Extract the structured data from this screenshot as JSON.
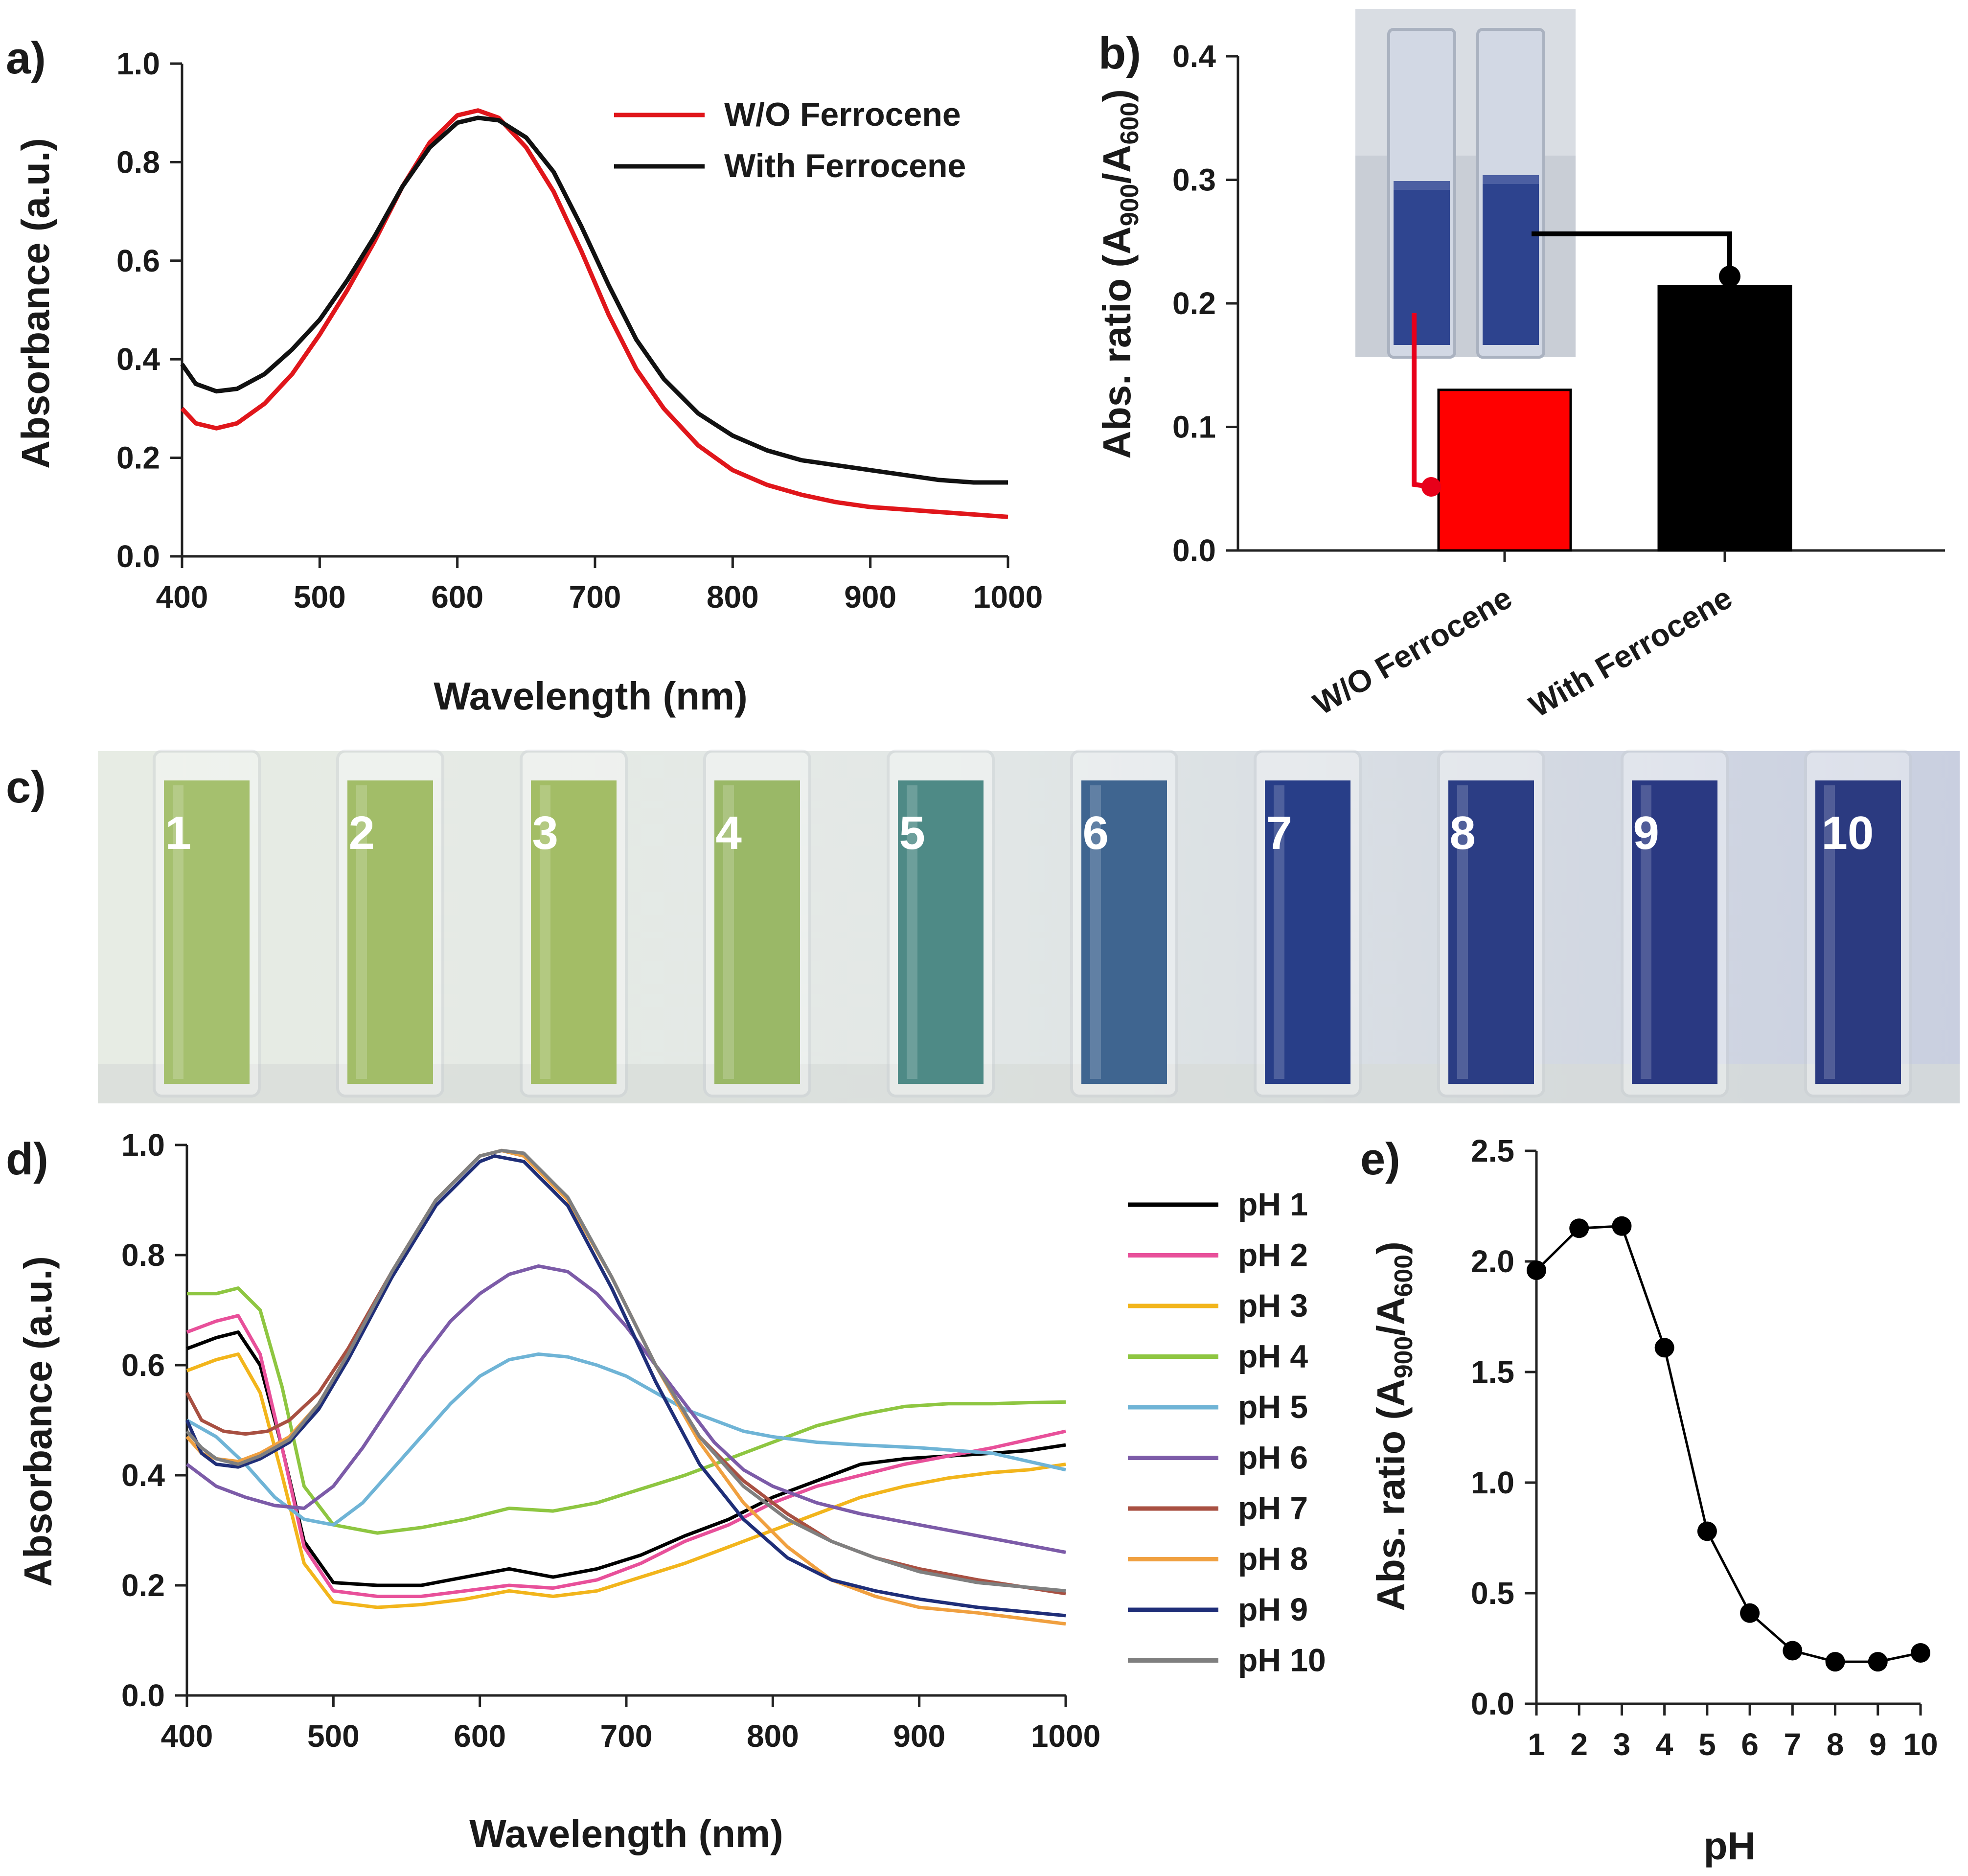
{
  "panels": {
    "a": {
      "label": "a)",
      "chart_data": {
        "type": "line",
        "xlabel": "Wavelength (nm)",
        "ylabel": "Absorbance (a.u.)",
        "xlim": [
          400,
          1000
        ],
        "ylim": [
          0,
          1.0
        ],
        "xticks": [
          400,
          500,
          600,
          700,
          800,
          900,
          1000
        ],
        "yticks": [
          0.0,
          0.2,
          0.4,
          0.6,
          0.8,
          1.0
        ],
        "legend_position": "top-right",
        "series": [
          {
            "name": "W/O Ferrocene",
            "color": "#e0161b",
            "x": [
              400,
              410,
              425,
              440,
              460,
              480,
              500,
              520,
              540,
              560,
              580,
              600,
              615,
              630,
              650,
              670,
              690,
              710,
              730,
              750,
              775,
              800,
              825,
              850,
              875,
              900,
              925,
              950,
              975,
              1000
            ],
            "y": [
              0.3,
              0.27,
              0.26,
              0.27,
              0.31,
              0.37,
              0.45,
              0.54,
              0.64,
              0.75,
              0.84,
              0.895,
              0.905,
              0.89,
              0.83,
              0.74,
              0.62,
              0.49,
              0.38,
              0.3,
              0.225,
              0.175,
              0.145,
              0.125,
              0.11,
              0.1,
              0.095,
              0.09,
              0.085,
              0.08
            ]
          },
          {
            "name": "With Ferrocene",
            "color": "#111111",
            "x": [
              400,
              410,
              425,
              440,
              460,
              480,
              500,
              520,
              540,
              560,
              580,
              600,
              615,
              630,
              650,
              670,
              690,
              710,
              730,
              750,
              775,
              800,
              825,
              850,
              875,
              900,
              925,
              950,
              975,
              1000
            ],
            "y": [
              0.39,
              0.35,
              0.335,
              0.34,
              0.37,
              0.42,
              0.48,
              0.56,
              0.65,
              0.75,
              0.83,
              0.88,
              0.89,
              0.885,
              0.85,
              0.78,
              0.67,
              0.55,
              0.44,
              0.36,
              0.29,
              0.245,
              0.215,
              0.195,
              0.185,
              0.175,
              0.165,
              0.155,
              0.15,
              0.15
            ]
          }
        ]
      }
    },
    "b": {
      "label": "b)",
      "chart_data": {
        "type": "bar",
        "ylabel": "Abs. ratio (A900/A600)",
        "ylabel_parts": {
          "prefix": "Abs. ratio (A",
          "sub1": "900",
          "mid": "/A",
          "sub2": "600",
          "suffix": ")"
        },
        "ylim": [
          0,
          0.4
        ],
        "yticks": [
          0.0,
          0.1,
          0.2,
          0.3,
          0.4
        ],
        "categories": [
          "W/O Ferrocene",
          "With Ferrocene"
        ],
        "values": [
          0.13,
          0.214
        ],
        "colors": [
          "#ff0000",
          "#000000"
        ],
        "inset": "photo of two cuvettes (left: W/O Ferrocene, right: With Ferrocene)"
      }
    },
    "c": {
      "label": "c)",
      "cuvettes": [
        {
          "label": "1",
          "color": "#a5c06e"
        },
        {
          "label": "2",
          "color": "#a2bd68"
        },
        {
          "label": "3",
          "color": "#a3bd66"
        },
        {
          "label": "4",
          "color": "#9ab867"
        },
        {
          "label": "5",
          "color": "#4e8a86"
        },
        {
          "label": "6",
          "color": "#3f6590"
        },
        {
          "label": "7",
          "color": "#283e88"
        },
        {
          "label": "8",
          "color": "#2b3d84"
        },
        {
          "label": "9",
          "color": "#2a3982"
        },
        {
          "label": "10",
          "color": "#2b3a80"
        }
      ]
    },
    "d": {
      "label": "d)",
      "chart_data": {
        "type": "line",
        "xlabel": "Wavelength (nm)",
        "ylabel": "Absorbance (a.u.)",
        "xlim": [
          400,
          1000
        ],
        "ylim": [
          0,
          1.0
        ],
        "xticks": [
          400,
          500,
          600,
          700,
          800,
          900,
          1000
        ],
        "yticks": [
          0.0,
          0.2,
          0.4,
          0.6,
          0.8,
          1.0
        ],
        "legend_position": "right",
        "series": [
          {
            "name": "pH 1",
            "color": "#000000",
            "x": [
              400,
              420,
              435,
              450,
              465,
              480,
              500,
              530,
              560,
              590,
              620,
              650,
              680,
              710,
              740,
              770,
              800,
              830,
              860,
              890,
              920,
              950,
              975,
              1000
            ],
            "y": [
              0.63,
              0.65,
              0.66,
              0.6,
              0.45,
              0.28,
              0.205,
              0.2,
              0.2,
              0.215,
              0.23,
              0.215,
              0.23,
              0.255,
              0.29,
              0.32,
              0.36,
              0.39,
              0.42,
              0.43,
              0.435,
              0.44,
              0.445,
              0.455
            ]
          },
          {
            "name": "pH 2",
            "color": "#e8509a",
            "x": [
              400,
              420,
              435,
              450,
              465,
              480,
              500,
              530,
              560,
              590,
              620,
              650,
              680,
              710,
              740,
              770,
              800,
              830,
              860,
              890,
              920,
              950,
              975,
              1000
            ],
            "y": [
              0.66,
              0.68,
              0.69,
              0.62,
              0.45,
              0.27,
              0.19,
              0.18,
              0.18,
              0.19,
              0.2,
              0.195,
              0.21,
              0.24,
              0.28,
              0.31,
              0.35,
              0.38,
              0.4,
              0.42,
              0.435,
              0.45,
              0.465,
              0.48
            ]
          },
          {
            "name": "pH 3",
            "color": "#f2b51c",
            "x": [
              400,
              420,
              435,
              450,
              465,
              480,
              500,
              530,
              560,
              590,
              620,
              650,
              680,
              710,
              740,
              770,
              800,
              830,
              860,
              890,
              920,
              950,
              975,
              1000
            ],
            "y": [
              0.59,
              0.61,
              0.62,
              0.55,
              0.4,
              0.24,
              0.17,
              0.16,
              0.165,
              0.175,
              0.19,
              0.18,
              0.19,
              0.215,
              0.24,
              0.27,
              0.3,
              0.33,
              0.36,
              0.38,
              0.395,
              0.405,
              0.41,
              0.42
            ]
          },
          {
            "name": "pH 4",
            "color": "#8ec641",
            "x": [
              400,
              420,
              435,
              450,
              465,
              480,
              500,
              530,
              560,
              590,
              620,
              650,
              680,
              710,
              740,
              770,
              800,
              830,
              860,
              890,
              920,
              950,
              975,
              1000
            ],
            "y": [
              0.73,
              0.73,
              0.74,
              0.7,
              0.56,
              0.38,
              0.31,
              0.295,
              0.305,
              0.32,
              0.34,
              0.335,
              0.35,
              0.375,
              0.4,
              0.43,
              0.46,
              0.49,
              0.51,
              0.525,
              0.53,
              0.53,
              0.532,
              0.533
            ]
          },
          {
            "name": "pH 5",
            "color": "#6fb4d6",
            "x": [
              400,
              420,
              440,
              460,
              480,
              500,
              520,
              540,
              560,
              580,
              600,
              620,
              640,
              660,
              680,
              700,
              720,
              740,
              760,
              780,
              800,
              830,
              860,
              900,
              950,
              1000
            ],
            "y": [
              0.5,
              0.47,
              0.42,
              0.36,
              0.32,
              0.31,
              0.35,
              0.41,
              0.47,
              0.53,
              0.58,
              0.61,
              0.62,
              0.615,
              0.6,
              0.58,
              0.55,
              0.52,
              0.5,
              0.48,
              0.47,
              0.46,
              0.455,
              0.45,
              0.44,
              0.41
            ]
          },
          {
            "name": "pH 6",
            "color": "#7c5ba8",
            "x": [
              400,
              420,
              440,
              460,
              480,
              500,
              520,
              540,
              560,
              580,
              600,
              620,
              640,
              660,
              680,
              700,
              720,
              740,
              760,
              780,
              800,
              830,
              860,
              900,
              950,
              1000
            ],
            "y": [
              0.42,
              0.38,
              0.36,
              0.345,
              0.34,
              0.38,
              0.45,
              0.53,
              0.61,
              0.68,
              0.73,
              0.765,
              0.78,
              0.77,
              0.73,
              0.67,
              0.6,
              0.53,
              0.46,
              0.41,
              0.38,
              0.35,
              0.33,
              0.31,
              0.285,
              0.26
            ]
          },
          {
            "name": "pH 7",
            "color": "#a85042",
            "x": [
              400,
              410,
              425,
              440,
              455,
              470,
              490,
              510,
              540,
              570,
              600,
              615,
              630,
              660,
              690,
              720,
              750,
              780,
              810,
              840,
              870,
              900,
              940,
              1000
            ],
            "y": [
              0.55,
              0.5,
              0.48,
              0.475,
              0.48,
              0.5,
              0.55,
              0.63,
              0.77,
              0.9,
              0.98,
              0.99,
              0.98,
              0.9,
              0.76,
              0.6,
              0.47,
              0.39,
              0.33,
              0.28,
              0.25,
              0.23,
              0.21,
              0.185
            ]
          },
          {
            "name": "pH 8",
            "color": "#f0a040",
            "x": [
              400,
              410,
              420,
              435,
              450,
              470,
              490,
              510,
              540,
              570,
              600,
              615,
              630,
              660,
              690,
              720,
              750,
              780,
              810,
              840,
              870,
              900,
              940,
              1000
            ],
            "y": [
              0.47,
              0.44,
              0.43,
              0.425,
              0.44,
              0.47,
              0.53,
              0.62,
              0.77,
              0.9,
              0.98,
              0.99,
              0.98,
              0.9,
              0.76,
              0.6,
              0.46,
              0.35,
              0.27,
              0.21,
              0.18,
              0.16,
              0.15,
              0.13
            ]
          },
          {
            "name": "pH 9",
            "color": "#1f2e78",
            "x": [
              400,
              410,
              420,
              435,
              450,
              470,
              490,
              510,
              540,
              570,
              600,
              610,
              630,
              660,
              690,
              720,
              750,
              780,
              810,
              840,
              870,
              900,
              940,
              1000
            ],
            "y": [
              0.5,
              0.44,
              0.42,
              0.415,
              0.43,
              0.46,
              0.52,
              0.61,
              0.76,
              0.89,
              0.97,
              0.98,
              0.97,
              0.89,
              0.74,
              0.57,
              0.42,
              0.32,
              0.25,
              0.21,
              0.19,
              0.175,
              0.16,
              0.145
            ]
          },
          {
            "name": "pH 10",
            "color": "#7f7f7f",
            "x": [
              400,
              410,
              420,
              435,
              450,
              470,
              490,
              510,
              540,
              570,
              600,
              615,
              630,
              660,
              690,
              720,
              750,
              780,
              810,
              840,
              870,
              900,
              940,
              1000
            ],
            "y": [
              0.48,
              0.45,
              0.43,
              0.42,
              0.435,
              0.465,
              0.53,
              0.62,
              0.77,
              0.9,
              0.98,
              0.99,
              0.985,
              0.905,
              0.76,
              0.6,
              0.47,
              0.38,
              0.32,
              0.28,
              0.25,
              0.225,
              0.205,
              0.19
            ]
          }
        ]
      }
    },
    "e": {
      "label": "e)",
      "chart_data": {
        "type": "line",
        "markers": true,
        "xlabel": "pH",
        "ylabel": "Abs. ratio (A900/A600)",
        "ylabel_parts": {
          "prefix": "Abs. ratio (A",
          "sub1": "900",
          "mid": "/A",
          "sub2": "600",
          "suffix": ")"
        },
        "xlim": [
          1,
          10
        ],
        "ylim": [
          0,
          2.5
        ],
        "xticks": [
          1,
          2,
          3,
          4,
          5,
          6,
          7,
          8,
          9,
          10
        ],
        "yticks": [
          0.0,
          0.5,
          1.0,
          1.5,
          2.0,
          2.5
        ],
        "x": [
          1,
          2,
          3,
          4,
          5,
          6,
          7,
          8,
          9,
          10
        ],
        "y": [
          1.96,
          2.15,
          2.16,
          1.61,
          0.78,
          0.41,
          0.24,
          0.19,
          0.19,
          0.23
        ],
        "color": "#000000"
      }
    }
  }
}
